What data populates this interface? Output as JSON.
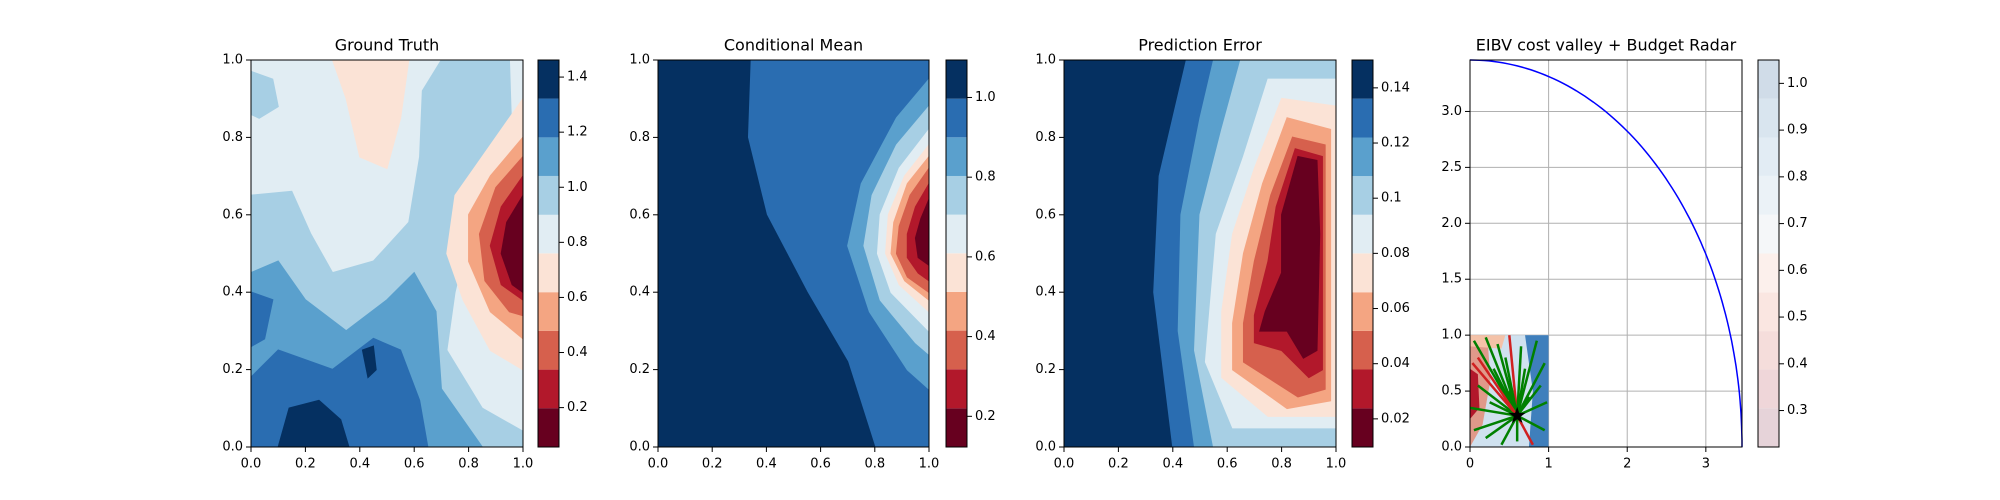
{
  "chart_data": [
    {
      "type": "contour",
      "title": "Ground Truth",
      "xlim": [
        0,
        1
      ],
      "ylim": [
        0,
        1
      ],
      "xticks": [
        {
          "value": 0,
          "label": "0.0"
        },
        0.2,
        0.4,
        0.6,
        0.8,
        {
          "value": 1,
          "label": "1.0"
        }
      ],
      "yticks": [
        {
          "value": 0,
          "label": "0.0"
        },
        0.2,
        0.4,
        0.6,
        0.8,
        {
          "value": 1,
          "label": "1.0"
        }
      ],
      "colorbar": {
        "levels": [
          0.057,
          0.198,
          0.338,
          0.479,
          0.619,
          0.76,
          0.9,
          1.041,
          1.181,
          1.322,
          1.462
        ],
        "colors": [
          "#67001f",
          "#b2182b",
          "#d6604d",
          "#f4a582",
          "#fbe3d6",
          "#e1edf3",
          "#a7cfe4",
          "#5aa0cd",
          "#2a6db1",
          "#053061"
        ],
        "ticks": [
          0.2,
          0.4,
          0.6,
          0.8,
          {
            "value": 1,
            "label": "1.0"
          },
          1.2,
          1.4
        ]
      }
    },
    {
      "type": "contour",
      "title": "Conditional Mean",
      "xlim": [
        0,
        1
      ],
      "ylim": [
        0,
        1
      ],
      "xticks": [
        {
          "value": 0,
          "label": "0.0"
        },
        0.2,
        0.4,
        0.6,
        0.8,
        {
          "value": 1,
          "label": "1.0"
        }
      ],
      "yticks": [
        {
          "value": 0,
          "label": "0.0"
        },
        0.2,
        0.4,
        0.6,
        0.8,
        {
          "value": 1,
          "label": "1.0"
        }
      ],
      "colorbar": {
        "levels": [
          0.123,
          0.22,
          0.318,
          0.415,
          0.512,
          0.609,
          0.706,
          0.803,
          0.9,
          0.997,
          1.094
        ],
        "colors": [
          "#67001f",
          "#b2182b",
          "#d6604d",
          "#f4a582",
          "#fbe3d6",
          "#e1edf3",
          "#a7cfe4",
          "#5aa0cd",
          "#2a6db1",
          "#053061"
        ],
        "ticks": [
          0.2,
          0.4,
          0.6,
          0.8,
          {
            "value": 1,
            "label": "1.0"
          }
        ]
      }
    },
    {
      "type": "contour",
      "title": "Prediction Error",
      "xlim": [
        0,
        1
      ],
      "ylim": [
        0,
        1
      ],
      "xticks": [
        {
          "value": 0,
          "label": "0.0"
        },
        0.2,
        0.4,
        0.6,
        0.8,
        {
          "value": 1,
          "label": "1.0"
        }
      ],
      "yticks": [
        {
          "value": 0,
          "label": "0.0"
        },
        0.2,
        0.4,
        0.6,
        0.8,
        {
          "value": 1,
          "label": "1.0"
        }
      ],
      "colorbar": {
        "levels": [
          0.0098,
          0.0238,
          0.0379,
          0.0519,
          0.0659,
          0.08,
          0.094,
          0.108,
          0.122,
          0.1361,
          0.1501
        ],
        "colors": [
          "#67001f",
          "#b2182b",
          "#d6604d",
          "#f4a582",
          "#fbe3d6",
          "#e1edf3",
          "#a7cfe4",
          "#5aa0cd",
          "#2a6db1",
          "#053061"
        ],
        "ticks": [
          0.02,
          0.04,
          0.06,
          0.08,
          0.1,
          0.12,
          0.14
        ]
      }
    },
    {
      "type": "radar",
      "title": "EIBV cost valley + Budget Radar",
      "xlim": [
        0,
        3.46
      ],
      "ylim": [
        0,
        3.46
      ],
      "grid": true,
      "xticks": [
        0,
        1,
        2,
        3
      ],
      "yticks": [
        {
          "value": 0,
          "label": "0.0"
        },
        0.5,
        {
          "value": 1,
          "label": "1.0"
        },
        1.5,
        {
          "value": 2,
          "label": "2.0"
        },
        2.5,
        {
          "value": 3,
          "label": "3.0"
        }
      ],
      "budget_radius": 3.46,
      "budget_color": "#0000ff",
      "marker": [
        0.6,
        0.28
      ],
      "colorbar": {
        "levels": [
          0.222,
          0.305,
          0.388,
          0.47,
          0.553,
          0.636,
          0.719,
          0.802,
          0.884,
          0.967,
          1.05
        ],
        "colors": [
          "#e6d3d9",
          "#efd6d9",
          "#f5dddb",
          "#fae6e1",
          "#fcf0ec",
          "#f5f7f9",
          "#ebf2f7",
          "#e2ecf4",
          "#d9e5ef",
          "#d0dce8"
        ],
        "ticks": [
          0.3,
          0.4,
          0.5,
          0.6,
          0.7,
          0.8,
          0.9,
          {
            "value": 1,
            "label": "1.0"
          }
        ]
      }
    }
  ]
}
